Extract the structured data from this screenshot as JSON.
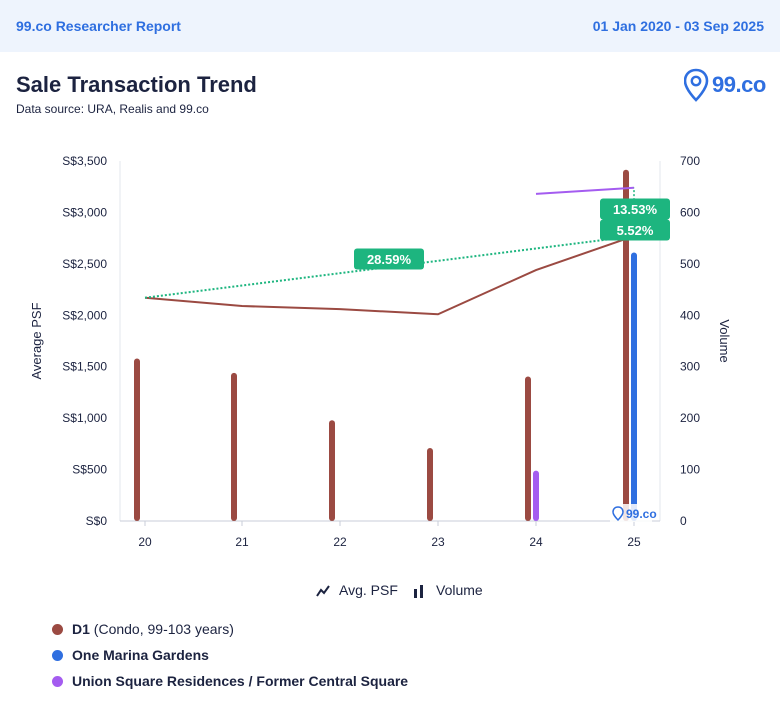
{
  "header": {
    "report_title": "99.co Researcher Report",
    "date_range": "01 Jan 2020 - 03 Sep 2025"
  },
  "page": {
    "title": "Sale Transaction Trend",
    "source": "Data source: URA, Realis and 99.co",
    "brand_text": "99.co",
    "watermark_text": "99.co"
  },
  "legend_top": {
    "psf_label": "Avg. PSF",
    "volume_label": "Volume"
  },
  "legend_series": [
    {
      "name": "D1",
      "detail": " (Condo, 99-103 years)",
      "color": "#9b4a42"
    },
    {
      "name": "One Marina Gardens",
      "detail": "",
      "color": "#2f6fe0"
    },
    {
      "name": "Union Square Residences / Former Central Square",
      "detail": "",
      "color": "#a45cf0"
    }
  ],
  "chart_data": {
    "type": "bar",
    "x_categories": [
      "20",
      "21",
      "22",
      "23",
      "24",
      "25"
    ],
    "y_left": {
      "label": "Average PSF",
      "range": [
        0,
        3500
      ],
      "ticks": [
        "S$0",
        "S$500",
        "S$1,000",
        "S$1,500",
        "S$2,000",
        "S$2,500",
        "S$3,000",
        "S$3,500"
      ]
    },
    "y_right": {
      "label": "Volume",
      "range": [
        0,
        700
      ],
      "ticks": [
        "0",
        "100",
        "200",
        "300",
        "400",
        "500",
        "600",
        "700"
      ]
    },
    "volume_series": [
      {
        "name": "D1",
        "color": "#9b4a42",
        "values": [
          316,
          288,
          196,
          142,
          281,
          683
        ]
      },
      {
        "name": "One Marina Gardens",
        "color": "#2f6fe0",
        "values": [
          null,
          null,
          null,
          null,
          null,
          522
        ]
      },
      {
        "name": "Union Square Residences / Former Central Square",
        "color": "#a45cf0",
        "values": [
          null,
          null,
          null,
          null,
          98,
          null
        ]
      }
    ],
    "psf_series": [
      {
        "name": "D1",
        "color": "#9b4a42",
        "values": [
          2170,
          2090,
          2060,
          2010,
          2440,
          2770
        ]
      },
      {
        "name": "Union Square Residences / Former Central Square",
        "color": "#a45cf0",
        "values": [
          null,
          null,
          null,
          null,
          3180,
          3240
        ]
      }
    ],
    "growth_labels": [
      "28.59%",
      "13.53%",
      "5.52%"
    ],
    "growth_color": "#1db57f",
    "grid": false
  }
}
